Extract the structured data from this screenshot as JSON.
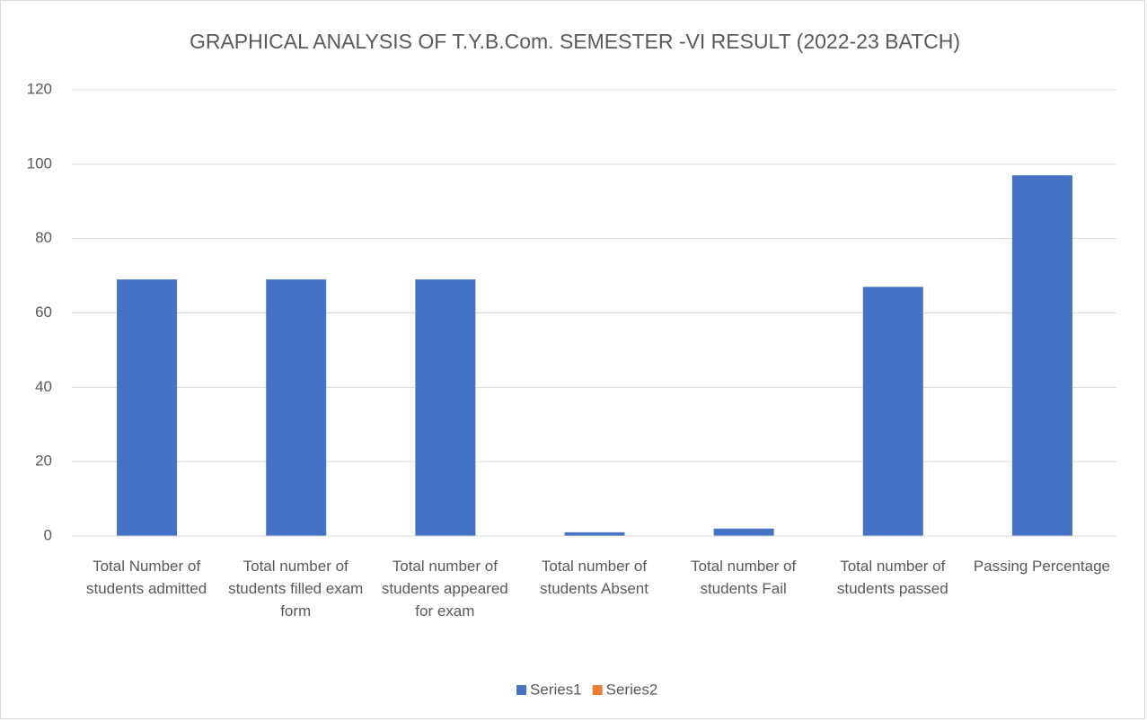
{
  "chart_data": {
    "type": "bar",
    "title": "GRAPHICAL ANALYSIS OF T.Y.B.Com. SEMESTER -VI RESULT (2022-23 BATCH)",
    "categories": [
      "Total Number of students admitted",
      "Total number of students filled exam form",
      "Total number of students appeared for exam",
      "Total number of students Absent",
      "Total number of students Fail",
      "Total number of students passed",
      "Passing Percentage"
    ],
    "series": [
      {
        "name": "Series1",
        "color": "#4472c4",
        "values": [
          69,
          69,
          69,
          1,
          2,
          67,
          97
        ]
      },
      {
        "name": "Series2",
        "color": "#ed7d31",
        "values": [
          null,
          null,
          null,
          null,
          null,
          null,
          null
        ]
      }
    ],
    "ylim": [
      0,
      120
    ],
    "yticks": [
      0,
      20,
      40,
      60,
      80,
      100,
      120
    ],
    "grid": true,
    "legend": "bottom"
  }
}
